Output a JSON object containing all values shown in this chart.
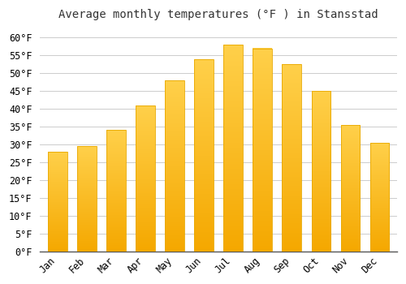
{
  "title": "Average monthly temperatures (°F ) in Stansstad",
  "months": [
    "Jan",
    "Feb",
    "Mar",
    "Apr",
    "May",
    "Jun",
    "Jul",
    "Aug",
    "Sep",
    "Oct",
    "Nov",
    "Dec"
  ],
  "values": [
    28.0,
    29.5,
    34.0,
    41.0,
    48.0,
    54.0,
    58.0,
    57.0,
    52.5,
    45.0,
    35.5,
    30.5
  ],
  "bar_color_top": "#FFD04A",
  "bar_color_bottom": "#F5A800",
  "bar_edge_color": "#E8A800",
  "background_color": "#FFFFFF",
  "grid_color": "#CCCCCC",
  "ylim": [
    0,
    63
  ],
  "yticks": [
    0,
    5,
    10,
    15,
    20,
    25,
    30,
    35,
    40,
    45,
    50,
    55,
    60
  ],
  "title_fontsize": 10,
  "tick_fontsize": 8.5
}
